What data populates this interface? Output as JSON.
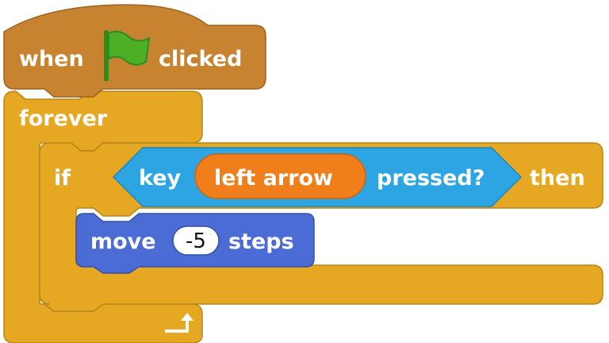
{
  "hat": {
    "when": "when",
    "clicked": "clicked",
    "flag_icon": "green-flag-icon",
    "color": "#c88330"
  },
  "forever": {
    "label": "forever",
    "color": "#e6a822",
    "loop_icon": "loop-arrow-icon"
  },
  "if_block": {
    "if": "if",
    "then": "then",
    "color": "#e6a822",
    "condition": {
      "key": "key",
      "key_name": "left arrow",
      "pressed": "pressed?",
      "color": "#2ca5e2",
      "dropdown_color": "#f07e1b"
    }
  },
  "move": {
    "label": "move",
    "value": "-5",
    "steps": "steps",
    "color": "#4a6cd4"
  }
}
